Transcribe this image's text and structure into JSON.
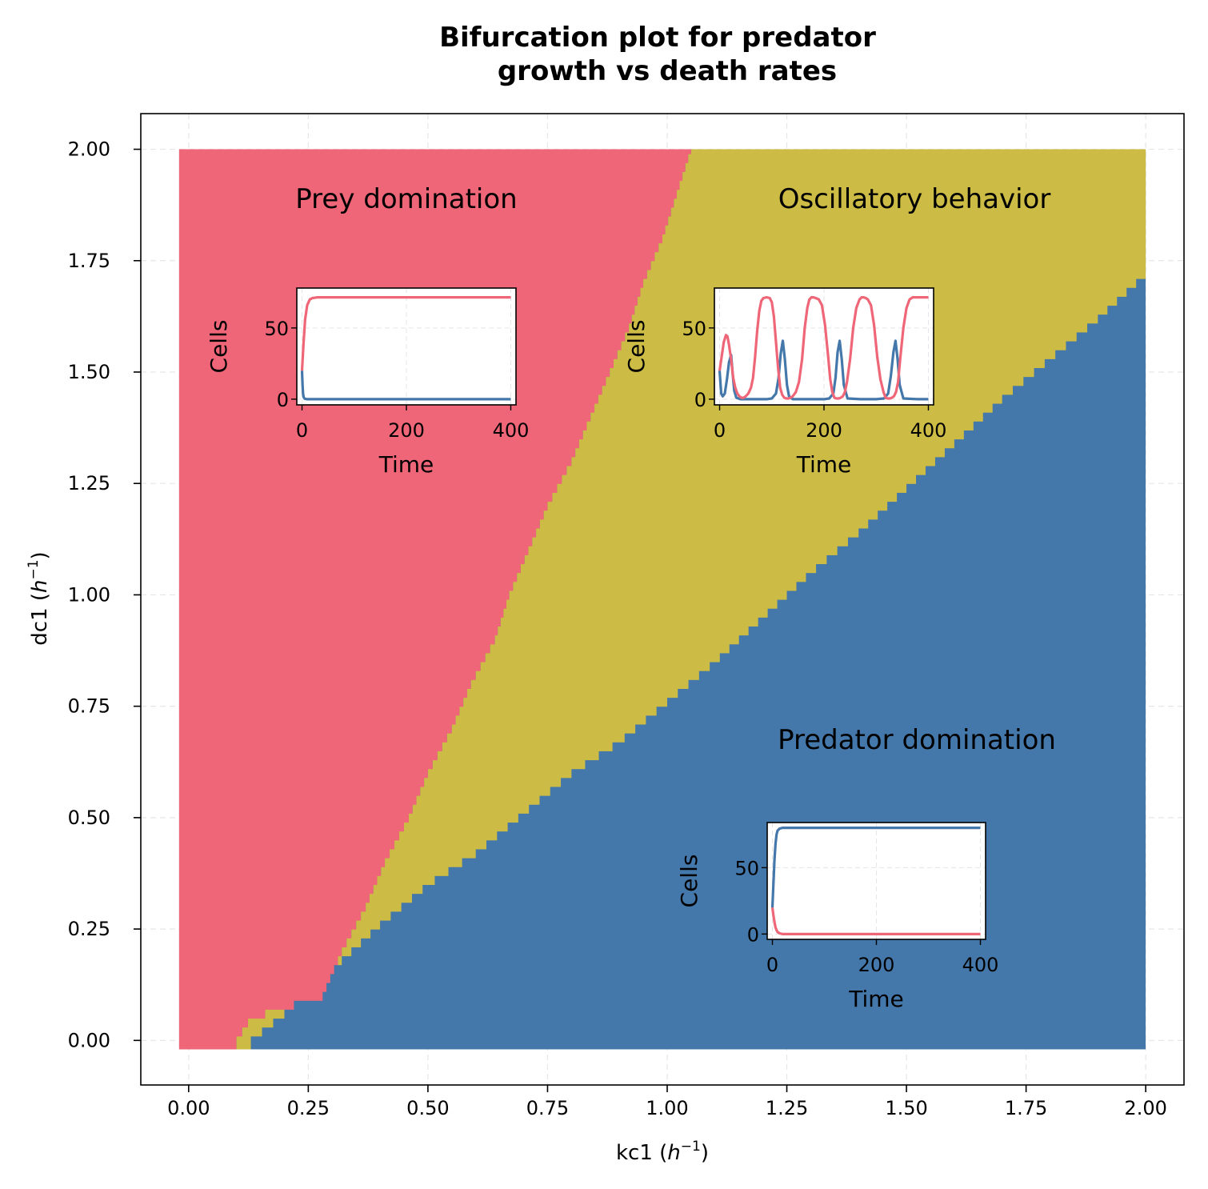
{
  "chart_data": {
    "type": "heatmap",
    "title_line1": "Bifurcation plot for predator",
    "title_line2": "growth vs death rates",
    "xlabel_main": "kc1 (",
    "xlabel_sym": "h",
    "xlabel_exp": "−1",
    "xlabel_close": ")",
    "ylabel_main": "dc1 (",
    "ylabel_sym": "h",
    "ylabel_exp": "−1",
    "ylabel_close": ")",
    "xlim": [
      -0.1,
      2.08
    ],
    "ylim": [
      -0.1,
      2.08
    ],
    "xticks": [
      0.0,
      0.25,
      0.5,
      0.75,
      1.0,
      1.25,
      1.5,
      1.75,
      2.0
    ],
    "xtick_labels": [
      "0.00",
      "0.25",
      "0.50",
      "0.75",
      "1.00",
      "1.25",
      "1.50",
      "1.75",
      "2.00"
    ],
    "yticks": [
      0.0,
      0.25,
      0.5,
      0.75,
      1.0,
      1.25,
      1.5,
      1.75,
      2.0
    ],
    "ytick_labels": [
      "0.00",
      "0.25",
      "0.50",
      "0.75",
      "1.00",
      "1.25",
      "1.50",
      "1.75",
      "2.00"
    ],
    "grid": true,
    "colors": {
      "prey_domination": "#EE6677",
      "oscillatory": "#CCBB44",
      "predator_domination": "#4477AA"
    },
    "regions": [
      {
        "name": "Prey domination",
        "color_key": "prey_domination"
      },
      {
        "name": "Oscillatory behavior",
        "color_key": "oscillatory"
      },
      {
        "name": "Predator domination",
        "color_key": "predator_domination"
      }
    ],
    "boundary_prey_oscillatory": {
      "dc1": [
        0.0,
        0.05,
        0.1,
        0.2,
        0.3,
        0.4,
        0.5,
        0.6,
        0.7,
        0.8,
        0.9,
        1.0,
        1.1,
        1.2,
        1.3,
        1.4,
        1.5,
        1.6,
        1.7,
        1.8,
        1.9,
        2.0
      ],
      "kc1": [
        0.1,
        0.13,
        0.28,
        0.32,
        0.37,
        0.41,
        0.46,
        0.5,
        0.55,
        0.59,
        0.64,
        0.67,
        0.71,
        0.75,
        0.8,
        0.84,
        0.88,
        0.92,
        0.95,
        0.99,
        1.02,
        1.05
      ]
    },
    "boundary_oscillatory_predator": {
      "kc1": [
        0.13,
        0.2,
        0.3,
        0.4,
        0.5,
        0.6,
        0.7,
        0.8,
        0.9,
        1.0,
        1.1,
        1.2,
        1.3,
        1.4,
        1.5,
        1.6,
        1.7,
        1.8,
        1.9,
        2.0
      ],
      "dc1": [
        0.0,
        0.06,
        0.16,
        0.26,
        0.35,
        0.42,
        0.51,
        0.6,
        0.67,
        0.76,
        0.85,
        0.95,
        1.05,
        1.14,
        1.24,
        1.34,
        1.44,
        1.53,
        1.62,
        1.72
      ]
    },
    "insets": [
      {
        "region": "Prey domination",
        "ylabel": "Cells",
        "xlabel": "Time",
        "xlim": [
          -10,
          410
        ],
        "ylim": [
          -4,
          78
        ],
        "xticks": [
          0,
          200,
          400
        ],
        "xtick_labels": [
          "0",
          "200",
          "400"
        ],
        "yticks": [
          0,
          50
        ],
        "ytick_labels": [
          "0",
          "50"
        ],
        "series": [
          {
            "color_key": "predator_domination",
            "t": [
              0,
              1,
              2,
              3,
              5,
              10,
              50,
              100,
              200,
              300,
              400
            ],
            "v": [
              20,
              10,
              4,
              1.5,
              0.3,
              0,
              0,
              0,
              0,
              0,
              0
            ]
          },
          {
            "color_key": "prey_domination",
            "t": [
              0,
              3,
              6,
              10,
              15,
              20,
              30,
              50,
              100,
              200,
              300,
              400
            ],
            "v": [
              20,
              40,
              56,
              66,
              70,
              71,
              71.5,
              71.5,
              71.5,
              71.5,
              71.5,
              71.5
            ]
          }
        ]
      },
      {
        "region": "Oscillatory behavior",
        "ylabel": "Cells",
        "xlabel": "Time",
        "xlim": [
          -10,
          410
        ],
        "ylim": [
          -4,
          78
        ],
        "xticks": [
          0,
          200,
          400
        ],
        "xtick_labels": [
          "0",
          "200",
          "400"
        ],
        "yticks": [
          0,
          50
        ],
        "ytick_labels": [
          "0",
          "50"
        ],
        "series": [
          {
            "color_key": "predator_domination",
            "t": [
              0,
              3,
              6,
              10,
              14,
              18,
              22,
              25,
              28,
              32,
              40,
              60,
              90,
              100,
              108,
              113,
              117,
              121,
              125,
              129,
              133,
              140,
              160,
              200,
              210,
              218,
              222,
              226,
              230,
              234,
              238,
              245,
              270,
              300,
              315,
              323,
              328,
              333,
              337,
              341,
              345,
              352,
              380,
              400
            ],
            "v": [
              20,
              4,
              2,
              4,
              14,
              26,
              31,
              18,
              6,
              1,
              0,
              0,
              0,
              0.5,
              4,
              15,
              32,
              41,
              28,
              10,
              2,
              0,
              0,
              0,
              0.5,
              4,
              15,
              33,
              41,
              28,
              10,
              0.5,
              0,
              0,
              0.5,
              4,
              16,
              33,
              41,
              28,
              10,
              0.5,
              0,
              0
            ]
          },
          {
            "color_key": "prey_domination",
            "t": [
              0,
              4,
              8,
              12,
              15,
              18,
              22,
              26,
              30,
              34,
              38,
              42,
              46,
              50,
              55,
              60,
              64,
              68,
              72,
              76,
              80,
              84,
              90,
              96,
              100,
              104,
              108,
              112,
              116,
              120,
              124,
              128,
              132,
              136,
              140,
              146,
              152,
              158,
              163,
              168,
              172,
              176,
              180,
              184,
              190,
              196,
              202,
              208,
              212,
              216,
              220,
              224,
              228,
              232,
              236,
              240,
              244,
              250,
              256,
              262,
              268,
              272,
              276,
              280,
              284,
              290,
              296,
              302,
              308,
              314,
              318,
              322,
              326,
              330,
              334,
              338,
              342,
              346,
              352,
              358,
              364,
              370,
              376,
              380,
              384,
              388,
              392,
              396,
              400
            ],
            "v": [
              20,
              30,
              40,
              45,
              44,
              38,
              28,
              15,
              8,
              4,
              2,
              1,
              1,
              2,
              4,
              8,
              15,
              30,
              48,
              62,
              69,
              71,
              71.5,
              71,
              68,
              58,
              40,
              22,
              8,
              3,
              1,
              0.5,
              0.5,
              1,
              2,
              5,
              12,
              28,
              50,
              64,
              70,
              71.5,
              71.5,
              71,
              70,
              66,
              52,
              30,
              14,
              5,
              1,
              0.5,
              0.5,
              1,
              2,
              5,
              12,
              28,
              50,
              64,
              70,
              71.5,
              71.5,
              71,
              70,
              66,
              52,
              30,
              14,
              5,
              1,
              0.5,
              0.5,
              1,
              2,
              5,
              12,
              28,
              50,
              64,
              70,
              71.5,
              71.5,
              71.5,
              71.5,
              71.5,
              71.5,
              71.5,
              71.5
            ]
          }
        ]
      },
      {
        "region": "Predator domination",
        "ylabel": "Cells",
        "xlabel": "Time",
        "xlim": [
          -10,
          410
        ],
        "ylim": [
          -4,
          84
        ],
        "xticks": [
          0,
          200,
          400
        ],
        "xtick_labels": [
          "0",
          "200",
          "400"
        ],
        "yticks": [
          0,
          50
        ],
        "ytick_labels": [
          "0",
          "50"
        ],
        "series": [
          {
            "color_key": "prey_domination",
            "t": [
              0,
              2,
              4,
              6,
              8,
              10,
              14,
              20,
              50,
              100,
              200,
              300,
              400
            ],
            "v": [
              20,
              14,
              9,
              5,
              3,
              1.5,
              0.5,
              0,
              0,
              0,
              0,
              0,
              0
            ]
          },
          {
            "color_key": "predator_domination",
            "t": [
              0,
              2,
              4,
              6,
              8,
              10,
              14,
              20,
              50,
              100,
              200,
              300,
              400
            ],
            "v": [
              20,
              38,
              56,
              68,
              75,
              78,
              79.5,
              80,
              80,
              80,
              80,
              80,
              80
            ]
          }
        ]
      }
    ]
  }
}
